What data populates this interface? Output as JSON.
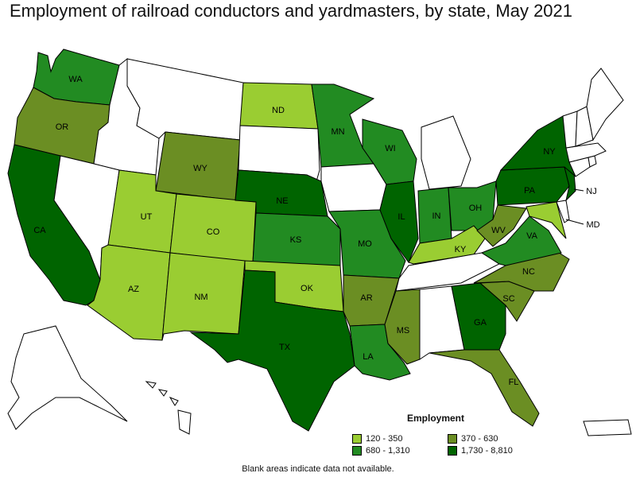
{
  "title": "Employment of railroad conductors and yardmasters, by state, May 2021",
  "legend": {
    "title": "Employment",
    "items": [
      {
        "label": "120 - 350",
        "color": "#9acd32"
      },
      {
        "label": "370 - 630",
        "color": "#6b8e23"
      },
      {
        "label": "680 - 1,310",
        "color": "#228b22"
      },
      {
        "label": "1,730 - 8,810",
        "color": "#006400"
      }
    ]
  },
  "note": "Blank areas indicate data not available.",
  "states": [
    {
      "abbr": "WA",
      "cls": 3
    },
    {
      "abbr": "OR",
      "cls": 2
    },
    {
      "abbr": "CA",
      "cls": 4
    },
    {
      "abbr": "ID",
      "cls": 0
    },
    {
      "abbr": "NV",
      "cls": 0
    },
    {
      "abbr": "MT",
      "cls": 0
    },
    {
      "abbr": "WY",
      "cls": 2
    },
    {
      "abbr": "UT",
      "cls": 1
    },
    {
      "abbr": "AZ",
      "cls": 1
    },
    {
      "abbr": "CO",
      "cls": 1
    },
    {
      "abbr": "NM",
      "cls": 1
    },
    {
      "abbr": "ND",
      "cls": 1
    },
    {
      "abbr": "SD",
      "cls": 0
    },
    {
      "abbr": "NE",
      "cls": 4
    },
    {
      "abbr": "KS",
      "cls": 3
    },
    {
      "abbr": "OK",
      "cls": 1
    },
    {
      "abbr": "TX",
      "cls": 4
    },
    {
      "abbr": "MN",
      "cls": 3
    },
    {
      "abbr": "IA",
      "cls": 0
    },
    {
      "abbr": "MO",
      "cls": 3
    },
    {
      "abbr": "AR",
      "cls": 2
    },
    {
      "abbr": "LA",
      "cls": 3
    },
    {
      "abbr": "WI",
      "cls": 3
    },
    {
      "abbr": "IL",
      "cls": 4
    },
    {
      "abbr": "MI",
      "cls": 0
    },
    {
      "abbr": "IN",
      "cls": 3
    },
    {
      "abbr": "OH",
      "cls": 3
    },
    {
      "abbr": "KY",
      "cls": 1
    },
    {
      "abbr": "TN",
      "cls": 0
    },
    {
      "abbr": "MS",
      "cls": 2
    },
    {
      "abbr": "AL",
      "cls": 0
    },
    {
      "abbr": "GA",
      "cls": 4
    },
    {
      "abbr": "FL",
      "cls": 2
    },
    {
      "abbr": "SC",
      "cls": 2
    },
    {
      "abbr": "NC",
      "cls": 2
    },
    {
      "abbr": "VA",
      "cls": 3
    },
    {
      "abbr": "WV",
      "cls": 2
    },
    {
      "abbr": "MD",
      "cls": 1
    },
    {
      "abbr": "DE",
      "cls": 0
    },
    {
      "abbr": "PA",
      "cls": 4
    },
    {
      "abbr": "NJ",
      "cls": 4
    },
    {
      "abbr": "NY",
      "cls": 4
    },
    {
      "abbr": "CT",
      "cls": 0
    },
    {
      "abbr": "RI",
      "cls": 0
    },
    {
      "abbr": "MA",
      "cls": 0
    },
    {
      "abbr": "VT",
      "cls": 0
    },
    {
      "abbr": "NH",
      "cls": 0
    },
    {
      "abbr": "ME",
      "cls": 0
    },
    {
      "abbr": "AK",
      "cls": 0
    },
    {
      "abbr": "HI",
      "cls": 0
    },
    {
      "abbr": "PR",
      "cls": 0
    }
  ],
  "shown_labels": [
    "WA",
    "OR",
    "CA",
    "WY",
    "UT",
    "AZ",
    "CO",
    "NM",
    "ND",
    "NE",
    "KS",
    "OK",
    "TX",
    "MN",
    "MO",
    "AR",
    "LA",
    "WI",
    "IL",
    "IN",
    "OH",
    "KY",
    "MS",
    "GA",
    "FL",
    "SC",
    "NC",
    "VA",
    "WV",
    "MD",
    "PA",
    "NJ",
    "NY"
  ]
}
